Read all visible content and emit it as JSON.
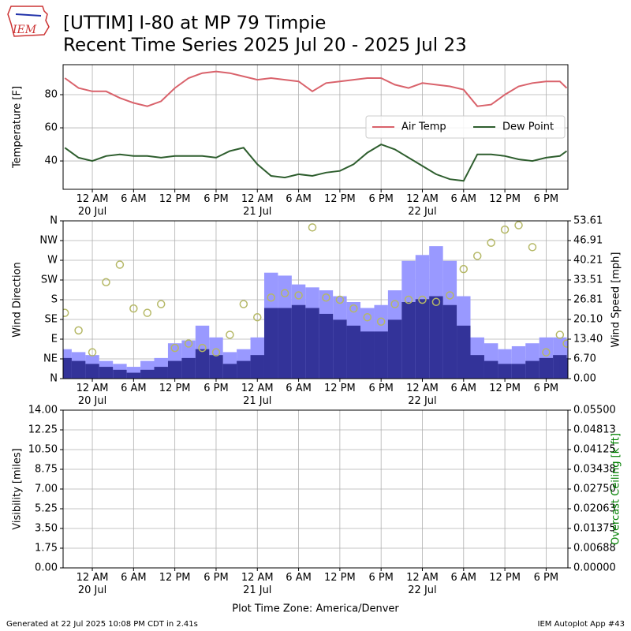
{
  "title_line1": "[UTTIM] I-80 at MP 79 Timpie",
  "title_line2": "Recent Time Series 2025 Jul 20 - 2025 Jul 23",
  "logo_text": "IEM",
  "x_axis_title": "Plot Time Zone: America/Denver",
  "footer_left": "Generated at 22 Jul 2025 10:08 PM CDT in 2.41s",
  "footer_right": "IEM Autoplot App #43",
  "chart_data": [
    {
      "type": "line",
      "ylabel": "Temperature [F]",
      "grid": true,
      "legend": "center right",
      "xlim": [
        "2025-07-19T19:45",
        "2025-07-22T21:10"
      ],
      "xticks": [
        {
          "value": "2025-07-20T00:00",
          "label": "12 AM\n20 Jul"
        },
        {
          "value": "2025-07-20T06:00",
          "label": "6 AM"
        },
        {
          "value": "2025-07-20T12:00",
          "label": "12 PM"
        },
        {
          "value": "2025-07-20T18:00",
          "label": "6 PM"
        },
        {
          "value": "2025-07-21T00:00",
          "label": "12 AM\n21 Jul"
        },
        {
          "value": "2025-07-21T06:00",
          "label": "6 AM"
        },
        {
          "value": "2025-07-21T12:00",
          "label": "12 PM"
        },
        {
          "value": "2025-07-21T18:00",
          "label": "6 PM"
        },
        {
          "value": "2025-07-22T00:00",
          "label": "12 AM\n22 Jul"
        },
        {
          "value": "2025-07-22T06:00",
          "label": "6 AM"
        },
        {
          "value": "2025-07-22T12:00",
          "label": "12 PM"
        },
        {
          "value": "2025-07-22T18:00",
          "label": "6 PM"
        }
      ],
      "ylim": [
        22.9,
        98.1
      ],
      "yticks": [
        40,
        60,
        80
      ],
      "x": [
        "2025-07-19T20:00",
        "2025-07-19T22:00",
        "2025-07-20T00:00",
        "2025-07-20T02:00",
        "2025-07-20T04:00",
        "2025-07-20T06:00",
        "2025-07-20T08:00",
        "2025-07-20T10:00",
        "2025-07-20T12:00",
        "2025-07-20T14:00",
        "2025-07-20T16:00",
        "2025-07-20T18:00",
        "2025-07-20T20:00",
        "2025-07-20T22:00",
        "2025-07-21T00:00",
        "2025-07-21T02:00",
        "2025-07-21T04:00",
        "2025-07-21T06:00",
        "2025-07-21T08:00",
        "2025-07-21T10:00",
        "2025-07-21T12:00",
        "2025-07-21T14:00",
        "2025-07-21T16:00",
        "2025-07-21T18:00",
        "2025-07-21T20:00",
        "2025-07-21T22:00",
        "2025-07-22T00:00",
        "2025-07-22T02:00",
        "2025-07-22T04:00",
        "2025-07-22T06:00",
        "2025-07-22T08:00",
        "2025-07-22T10:00",
        "2025-07-22T12:00",
        "2025-07-22T14:00",
        "2025-07-22T16:00",
        "2025-07-22T18:00",
        "2025-07-22T20:00",
        "2025-07-22T21:00"
      ],
      "series": [
        {
          "name": "Air Temp",
          "color": "#d9626b",
          "values": [
            90,
            84,
            82,
            82,
            78,
            75,
            73,
            76,
            84,
            90,
            93,
            94,
            93,
            91,
            89,
            90,
            89,
            88,
            82,
            87,
            88,
            89,
            90,
            90,
            86,
            84,
            87,
            86,
            85,
            83,
            73,
            74,
            80,
            85,
            87,
            88,
            88,
            84
          ]
        },
        {
          "name": "Dew Point",
          "color": "#2e5e2e",
          "values": [
            48,
            42,
            40,
            43,
            44,
            43,
            43,
            42,
            43,
            43,
            43,
            42,
            46,
            48,
            38,
            31,
            30,
            32,
            31,
            33,
            34,
            38,
            45,
            50,
            47,
            42,
            37,
            32,
            29,
            28,
            44,
            44,
            43,
            41,
            40,
            42,
            43,
            46
          ]
        }
      ]
    },
    {
      "type": "bar",
      "ylabel": "Wind Direction",
      "y2label": "Wind Speed [mph]",
      "grid": true,
      "xlim": [
        "2025-07-19T19:45",
        "2025-07-22T21:10"
      ],
      "xticks": [
        {
          "value": "2025-07-20T00:00",
          "label": "12 AM\n20 Jul"
        },
        {
          "value": "2025-07-20T06:00",
          "label": "6 AM"
        },
        {
          "value": "2025-07-20T12:00",
          "label": "12 PM"
        },
        {
          "value": "2025-07-20T18:00",
          "label": "6 PM"
        },
        {
          "value": "2025-07-21T00:00",
          "label": "12 AM\n21 Jul"
        },
        {
          "value": "2025-07-21T06:00",
          "label": "6 AM"
        },
        {
          "value": "2025-07-21T12:00",
          "label": "12 PM"
        },
        {
          "value": "2025-07-21T18:00",
          "label": "6 PM"
        },
        {
          "value": "2025-07-22T00:00",
          "label": "12 AM\n22 Jul"
        },
        {
          "value": "2025-07-22T06:00",
          "label": "6 AM"
        },
        {
          "value": "2025-07-22T12:00",
          "label": "12 PM"
        },
        {
          "value": "2025-07-22T18:00",
          "label": "6 PM"
        }
      ],
      "ylim": [
        0,
        360
      ],
      "yticks": [
        {
          "value": 0,
          "label": "N"
        },
        {
          "value": 45,
          "label": "NE"
        },
        {
          "value": 90,
          "label": "E"
        },
        {
          "value": 135,
          "label": "SE"
        },
        {
          "value": 180,
          "label": "S"
        },
        {
          "value": 225,
          "label": "SW"
        },
        {
          "value": 270,
          "label": "W"
        },
        {
          "value": 315,
          "label": "NW"
        },
        {
          "value": 360,
          "label": "N"
        }
      ],
      "y2lim": [
        0,
        53.61
      ],
      "y2ticks": [
        {
          "value": 0,
          "label": "0.00"
        },
        {
          "value": 6.7,
          "label": "6.70"
        },
        {
          "value": 13.4,
          "label": "13.40"
        },
        {
          "value": 20.1,
          "label": "20.10"
        },
        26.81,
        33.51,
        40.21,
        46.91,
        53.61
      ],
      "x": [
        "2025-07-19T20:00",
        "2025-07-19T22:00",
        "2025-07-20T00:00",
        "2025-07-20T02:00",
        "2025-07-20T04:00",
        "2025-07-20T06:00",
        "2025-07-20T08:00",
        "2025-07-20T10:00",
        "2025-07-20T12:00",
        "2025-07-20T14:00",
        "2025-07-20T16:00",
        "2025-07-20T18:00",
        "2025-07-20T20:00",
        "2025-07-20T22:00",
        "2025-07-21T00:00",
        "2025-07-21T02:00",
        "2025-07-21T04:00",
        "2025-07-21T06:00",
        "2025-07-21T08:00",
        "2025-07-21T10:00",
        "2025-07-21T12:00",
        "2025-07-21T14:00",
        "2025-07-21T16:00",
        "2025-07-21T18:00",
        "2025-07-21T20:00",
        "2025-07-21T22:00",
        "2025-07-22T00:00",
        "2025-07-22T02:00",
        "2025-07-22T04:00",
        "2025-07-22T06:00",
        "2025-07-22T08:00",
        "2025-07-22T10:00",
        "2025-07-22T12:00",
        "2025-07-22T14:00",
        "2025-07-22T16:00",
        "2025-07-22T18:00",
        "2025-07-22T20:00",
        "2025-07-22T21:00"
      ],
      "series": [
        {
          "type": "bar",
          "axis": "y2",
          "color": "#9999ff",
          "values": [
            10,
            9,
            8,
            6,
            5,
            4,
            6,
            7,
            12,
            13,
            18,
            14,
            9,
            10,
            14,
            36,
            35,
            32,
            31,
            30,
            28,
            26,
            24,
            25,
            30,
            40,
            42,
            45,
            40,
            28,
            14,
            12,
            10,
            11,
            12,
            14,
            14,
            13
          ]
        },
        {
          "type": "bar",
          "axis": "y2",
          "color": "#333399",
          "values": [
            7,
            6,
            5,
            4,
            3,
            2,
            3,
            4,
            6,
            7,
            10,
            8,
            5,
            6,
            8,
            24,
            24,
            25,
            24,
            22,
            20,
            18,
            16,
            16,
            20,
            26,
            27,
            28,
            25,
            18,
            8,
            6,
            5,
            5,
            6,
            7,
            8,
            7
          ]
        },
        {
          "type": "scatter",
          "color": "#b5b866",
          "values": [
            150,
            110,
            60,
            220,
            260,
            160,
            150,
            170,
            70,
            80,
            70,
            60,
            100,
            170,
            140,
            185,
            195,
            190,
            345,
            185,
            180,
            160,
            140,
            130,
            170,
            180,
            180,
            175,
            190,
            250,
            280,
            310,
            340,
            350,
            300,
            60,
            100,
            80
          ]
        }
      ]
    },
    {
      "type": "line",
      "ylabel": "Visibility [miles]",
      "y2label": "Overcast Ceiling [k ft]",
      "y2label_color": "#008000",
      "grid": true,
      "xlim": [
        "2025-07-19T19:45",
        "2025-07-22T21:10"
      ],
      "xticks": [
        {
          "value": "2025-07-20T00:00",
          "label": "12 AM\n20 Jul"
        },
        {
          "value": "2025-07-20T06:00",
          "label": "6 AM"
        },
        {
          "value": "2025-07-20T12:00",
          "label": "12 PM"
        },
        {
          "value": "2025-07-20T18:00",
          "label": "6 PM"
        },
        {
          "value": "2025-07-21T00:00",
          "label": "12 AM\n21 Jul"
        },
        {
          "value": "2025-07-21T06:00",
          "label": "6 AM"
        },
        {
          "value": "2025-07-21T12:00",
          "label": "12 PM"
        },
        {
          "value": "2025-07-21T18:00",
          "label": "6 PM"
        },
        {
          "value": "2025-07-22T00:00",
          "label": "12 AM\n22 Jul"
        },
        {
          "value": "2025-07-22T06:00",
          "label": "6 AM"
        },
        {
          "value": "2025-07-22T12:00",
          "label": "12 PM"
        },
        {
          "value": "2025-07-22T18:00",
          "label": "6 PM"
        }
      ],
      "ylim": [
        0,
        14
      ],
      "yticks": [
        {
          "value": 0,
          "label": "0.00"
        },
        1.75,
        {
          "value": 3.5,
          "label": "3.50"
        },
        5.25,
        {
          "value": 7,
          "label": "7.00"
        },
        8.75,
        {
          "value": 10.5,
          "label": "10.50"
        },
        12.25,
        {
          "value": 14,
          "label": "14.00"
        }
      ],
      "y2lim": [
        0,
        0.055
      ],
      "y2ticks": [
        {
          "value": 0,
          "label": "0.00000"
        },
        {
          "value": 0.006875,
          "label": "0.00688"
        },
        0.01375,
        {
          "value": 0.020625,
          "label": "0.02063"
        },
        {
          "value": 0.0275,
          "label": "0.02750"
        },
        {
          "value": 0.034375,
          "label": "0.03438"
        },
        0.04125,
        {
          "value": 0.048125,
          "label": "0.04813"
        },
        {
          "value": 0.055,
          "label": "0.05500"
        }
      ]
    }
  ]
}
